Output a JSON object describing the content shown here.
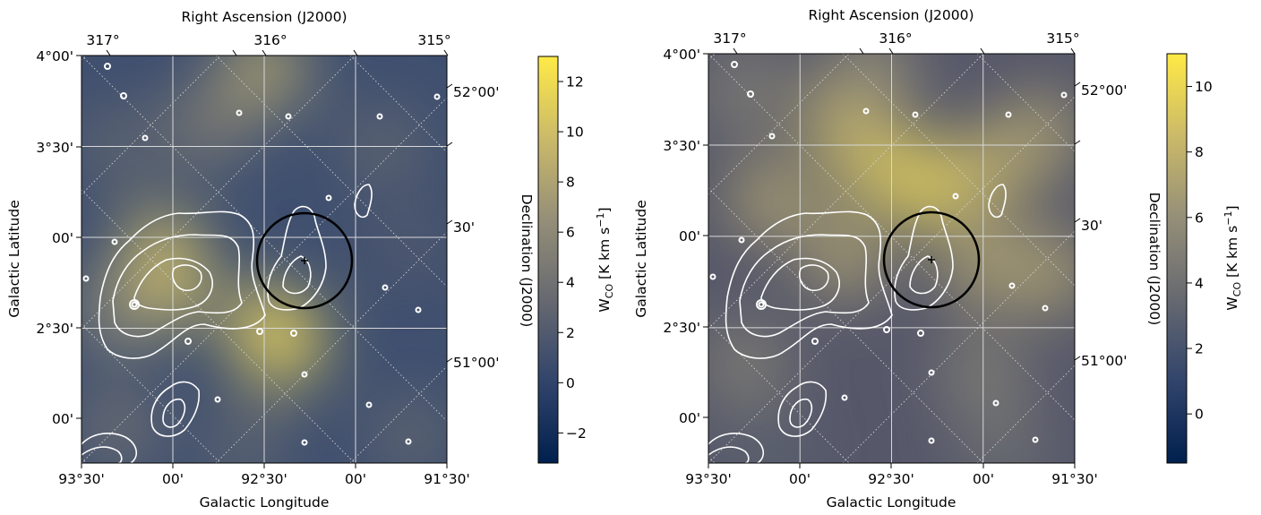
{
  "chart_data": [
    {
      "type": "heatmap",
      "title": "",
      "xlabel": "Galactic Longitude",
      "ylabel": "Galactic Latitude",
      "top_axis_label": "Right Ascension (J2000)",
      "right_axis_label": "Declination (J2000)",
      "x_ticks": [
        "93°30'",
        "00'",
        "92°30'",
        "00'",
        "91°30'"
      ],
      "xlim_deg": [
        93.5,
        91.5
      ],
      "y_ticks": [
        "4°00'",
        "3°30'",
        "00'",
        "2°30'",
        "00'"
      ],
      "ylim_deg": [
        1.75,
        4.0
      ],
      "ra_ticks": [
        "317°",
        "316°",
        "315°"
      ],
      "dec_ticks": [
        "52°00'",
        "30'",
        "51°00'"
      ],
      "grid": true,
      "colorbar": {
        "label": "W_CO [K km s⁻¹]",
        "label_main": "W",
        "label_sub": "CO",
        "label_unit": " [K km s",
        "label_sup": "−1",
        "label_end": "]",
        "range": [
          -3.2,
          13.0
        ],
        "ticks": [
          "−2",
          "0",
          "2",
          "4",
          "6",
          "8",
          "10",
          "12"
        ],
        "tick_values": [
          -2,
          0,
          2,
          4,
          6,
          8,
          10,
          12
        ]
      },
      "colormap": [
        "#00204d",
        "#31446b",
        "#666970",
        "#958f78",
        "#cbba69",
        "#ffea46"
      ],
      "overlay": {
        "circle_center_deg": [
          92.27,
          2.87
        ],
        "circle_radius_deg": 0.26,
        "circle_color": "#000000",
        "contour_color": "#ffffff"
      },
      "blobs": [
        {
          "l": 92.5,
          "b": 3.92,
          "v": 8
        },
        {
          "l": 92.8,
          "b": 3.62,
          "v": 5
        },
        {
          "l": 93.05,
          "b": 2.92,
          "v": 9
        },
        {
          "l": 93.05,
          "b": 2.72,
          "v": 10
        },
        {
          "l": 92.5,
          "b": 2.52,
          "v": 9
        },
        {
          "l": 92.4,
          "b": 2.42,
          "v": 11
        },
        {
          "l": 93.3,
          "b": 2.6,
          "v": 6
        },
        {
          "l": 93.3,
          "b": 3.5,
          "v": 3
        },
        {
          "l": 91.85,
          "b": 3.5,
          "v": 3
        },
        {
          "l": 93.3,
          "b": 1.95,
          "v": 4
        },
        {
          "l": 92.6,
          "b": 1.85,
          "v": 3
        },
        {
          "l": 91.7,
          "b": 1.9,
          "v": 3
        },
        {
          "l": 91.7,
          "b": 2.95,
          "v": 2
        }
      ]
    },
    {
      "type": "heatmap",
      "title": "",
      "xlabel": "Galactic Longitude",
      "ylabel": "Galactic Latitude",
      "top_axis_label": "Right Ascension (J2000)",
      "right_axis_label": "Declination (J2000)",
      "x_ticks": [
        "93°30'",
        "00'",
        "92°30'",
        "00'",
        "91°30'"
      ],
      "xlim_deg": [
        93.5,
        91.5
      ],
      "y_ticks": [
        "4°00'",
        "3°30'",
        "00'",
        "2°30'",
        "00'"
      ],
      "ylim_deg": [
        1.75,
        4.0
      ],
      "ra_ticks": [
        "317°",
        "316°",
        "315°"
      ],
      "dec_ticks": [
        "52°00'",
        "30'",
        "51°00'"
      ],
      "grid": true,
      "colorbar": {
        "label": "W_CO [K km s⁻¹]",
        "label_main": "W",
        "label_sub": "CO",
        "label_unit": " [K km s",
        "label_sup": "−1",
        "label_end": "]",
        "range": [
          -1.5,
          11.0
        ],
        "ticks": [
          "0",
          "2",
          "4",
          "6",
          "8",
          "10"
        ],
        "tick_values": [
          0,
          2,
          4,
          6,
          8,
          10
        ]
      },
      "colormap": [
        "#00204d",
        "#31446b",
        "#666970",
        "#958f78",
        "#cbba69",
        "#ffea46"
      ],
      "overlay": {
        "circle_center_deg": [
          92.27,
          2.87
        ],
        "circle_radius_deg": 0.26,
        "circle_color": "#000000",
        "contour_color": "#ffffff"
      },
      "blobs": [
        {
          "l": 92.3,
          "b": 3.28,
          "v": 10
        },
        {
          "l": 92.6,
          "b": 3.42,
          "v": 9
        },
        {
          "l": 92.0,
          "b": 3.35,
          "v": 8
        },
        {
          "l": 92.75,
          "b": 3.65,
          "v": 8
        },
        {
          "l": 93.15,
          "b": 3.2,
          "v": 7
        },
        {
          "l": 92.0,
          "b": 2.85,
          "v": 7
        },
        {
          "l": 91.7,
          "b": 3.55,
          "v": 7
        },
        {
          "l": 91.65,
          "b": 2.8,
          "v": 7
        },
        {
          "l": 92.75,
          "b": 2.9,
          "v": 7
        },
        {
          "l": 92.6,
          "b": 3.9,
          "v": 6
        },
        {
          "l": 93.3,
          "b": 3.8,
          "v": 5
        },
        {
          "l": 93.3,
          "b": 2.3,
          "v": 5
        },
        {
          "l": 92.0,
          "b": 2.25,
          "v": 5
        },
        {
          "l": 91.9,
          "b": 1.85,
          "v": 4
        },
        {
          "l": 93.2,
          "b": 1.85,
          "v": 3
        }
      ]
    }
  ]
}
